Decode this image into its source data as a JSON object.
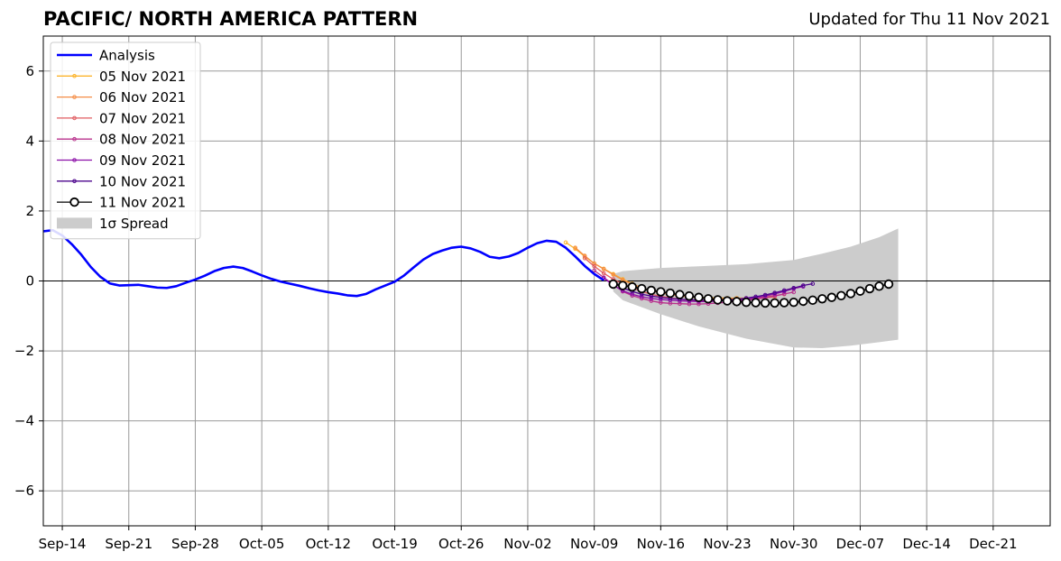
{
  "title_left": "PACIFIC/ NORTH AMERICA PATTERN",
  "title_right": "Updated for Thu 11 Nov 2021",
  "chart_data": {
    "type": "line",
    "title": "PACIFIC/ NORTH AMERICA PATTERN",
    "subtitle": "Updated for Thu 11 Nov 2021",
    "xlabel": "",
    "ylabel": "",
    "ylim": [
      -7,
      7
    ],
    "xlim": [
      "2021-09-12",
      "2021-12-27"
    ],
    "yticks": [
      -6,
      -4,
      -2,
      0,
      2,
      4,
      6
    ],
    "ytick_labels": [
      "−6",
      "−4",
      "−2",
      "0",
      "2",
      "4",
      "6"
    ],
    "xticks": [
      "2021-09-14",
      "2021-09-21",
      "2021-09-28",
      "2021-10-05",
      "2021-10-12",
      "2021-10-19",
      "2021-10-26",
      "2021-11-02",
      "2021-11-09",
      "2021-11-16",
      "2021-11-23",
      "2021-11-30",
      "2021-12-07",
      "2021-12-14",
      "2021-12-21"
    ],
    "xtick_labels": [
      "Sep-14",
      "Sep-21",
      "Sep-28",
      "Oct-05",
      "Oct-12",
      "Oct-19",
      "Oct-26",
      "Nov-02",
      "Nov-09",
      "Nov-16",
      "Nov-23",
      "Nov-30",
      "Dec-07",
      "Dec-14",
      "Dec-21"
    ],
    "grid": true,
    "zero_line": true,
    "legend_position": "top-left",
    "analysis": {
      "name": "Analysis",
      "color": "#0000ff",
      "x": [
        "2021-09-12",
        "2021-09-13",
        "2021-09-14",
        "2021-09-15",
        "2021-09-16",
        "2021-09-17",
        "2021-09-18",
        "2021-09-19",
        "2021-09-20",
        "2021-09-21",
        "2021-09-22",
        "2021-09-23",
        "2021-09-24",
        "2021-09-25",
        "2021-09-26",
        "2021-09-27",
        "2021-09-28",
        "2021-09-29",
        "2021-09-30",
        "2021-10-01",
        "2021-10-02",
        "2021-10-03",
        "2021-10-04",
        "2021-10-05",
        "2021-10-06",
        "2021-10-07",
        "2021-10-08",
        "2021-10-09",
        "2021-10-10",
        "2021-10-11",
        "2021-10-12",
        "2021-10-13",
        "2021-10-14",
        "2021-10-15",
        "2021-10-16",
        "2021-10-17",
        "2021-10-18",
        "2021-10-19",
        "2021-10-20",
        "2021-10-21",
        "2021-10-22",
        "2021-10-23",
        "2021-10-24",
        "2021-10-25",
        "2021-10-26",
        "2021-10-27",
        "2021-10-28",
        "2021-10-29",
        "2021-10-30",
        "2021-10-31",
        "2021-11-01",
        "2021-11-02",
        "2021-11-03",
        "2021-11-04",
        "2021-11-05",
        "2021-11-06",
        "2021-11-07",
        "2021-11-08",
        "2021-11-09",
        "2021-11-10"
      ],
      "values": [
        1.42,
        1.45,
        1.3,
        1.05,
        0.75,
        0.4,
        0.12,
        -0.07,
        -0.13,
        -0.12,
        -0.11,
        -0.15,
        -0.19,
        -0.2,
        -0.15,
        -0.05,
        0.04,
        0.15,
        0.28,
        0.37,
        0.41,
        0.37,
        0.27,
        0.16,
        0.06,
        -0.02,
        -0.08,
        -0.14,
        -0.21,
        -0.27,
        -0.32,
        -0.36,
        -0.41,
        -0.43,
        -0.37,
        -0.24,
        -0.13,
        -0.02,
        0.16,
        0.39,
        0.61,
        0.77,
        0.87,
        0.95,
        0.98,
        0.93,
        0.83,
        0.69,
        0.65,
        0.7,
        0.8,
        0.95,
        1.08,
        1.15,
        1.12,
        0.95,
        0.7,
        0.43,
        0.2,
        0.02
      ]
    },
    "forecasts": [
      {
        "name": "05 Nov 2021",
        "color": "#fcb42c",
        "start": "2021-11-06",
        "values": [
          1.1,
          0.92,
          0.7,
          0.5,
          0.35,
          0.2,
          0.05,
          -0.08,
          -0.2,
          -0.28,
          -0.33,
          -0.38,
          -0.42,
          -0.45,
          -0.47,
          -0.48,
          -0.48,
          -0.49,
          -0.49,
          -0.49,
          -0.48,
          -0.48
        ]
      },
      {
        "name": "06 Nov 2021",
        "color": "#f48c45",
        "start": "2021-11-07",
        "values": [
          0.95,
          0.72,
          0.5,
          0.34,
          0.18,
          0.03,
          -0.1,
          -0.2,
          -0.28,
          -0.34,
          -0.39,
          -0.43,
          -0.46,
          -0.48,
          -0.5,
          -0.5,
          -0.51,
          -0.5,
          -0.5,
          -0.49,
          -0.48,
          -0.46
        ]
      },
      {
        "name": "07 Nov 2021",
        "color": "#e05c60",
        "start": "2021-11-08",
        "values": [
          0.65,
          0.42,
          0.22,
          0.05,
          -0.08,
          -0.2,
          -0.3,
          -0.38,
          -0.44,
          -0.48,
          -0.52,
          -0.55,
          -0.56,
          -0.57,
          -0.57,
          -0.56,
          -0.55,
          -0.53,
          -0.5,
          -0.46,
          -0.42,
          -0.38
        ]
      },
      {
        "name": "08 Nov 2021",
        "color": "#b8308c",
        "start": "2021-11-09",
        "values": [
          0.3,
          0.1,
          -0.1,
          -0.3,
          -0.42,
          -0.5,
          -0.57,
          -0.62,
          -0.64,
          -0.65,
          -0.66,
          -0.66,
          -0.65,
          -0.63,
          -0.61,
          -0.58,
          -0.55,
          -0.52,
          -0.48,
          -0.43,
          -0.37,
          -0.32
        ]
      },
      {
        "name": "09 Nov 2021",
        "color": "#8c10a8",
        "start": "2021-11-10",
        "values": [
          0.08,
          -0.12,
          -0.28,
          -0.38,
          -0.45,
          -0.5,
          -0.53,
          -0.55,
          -0.57,
          -0.58,
          -0.59,
          -0.59,
          -0.58,
          -0.57,
          -0.55,
          -0.52,
          -0.48,
          -0.43,
          -0.37,
          -0.3,
          -0.22,
          -0.16
        ]
      },
      {
        "name": "10 Nov 2021",
        "color": "#4c048c",
        "start": "2021-11-11",
        "values": [
          -0.05,
          -0.2,
          -0.3,
          -0.38,
          -0.43,
          -0.47,
          -0.5,
          -0.52,
          -0.54,
          -0.55,
          -0.55,
          -0.55,
          -0.54,
          -0.52,
          -0.49,
          -0.45,
          -0.4,
          -0.34,
          -0.27,
          -0.2,
          -0.13,
          -0.08
        ]
      },
      {
        "name": "11 Nov 2021",
        "color": "#000000",
        "start": "2021-11-11",
        "marker": "open-circle",
        "values": [
          -0.09,
          -0.13,
          -0.17,
          -0.22,
          -0.27,
          -0.31,
          -0.35,
          -0.39,
          -0.43,
          -0.47,
          -0.51,
          -0.54,
          -0.57,
          -0.59,
          -0.61,
          -0.62,
          -0.63,
          -0.63,
          -0.62,
          -0.61,
          -0.58,
          -0.55,
          -0.51,
          -0.47,
          -0.42,
          -0.36,
          -0.29,
          -0.22,
          -0.15,
          -0.09
        ]
      }
    ],
    "spread": {
      "name": "1σ Spread",
      "color": "#cccccc",
      "x": [
        "2021-11-11",
        "2021-11-12",
        "2021-11-16",
        "2021-11-20",
        "2021-11-25",
        "2021-11-30",
        "2021-12-03",
        "2021-12-06",
        "2021-12-09",
        "2021-12-11"
      ],
      "upper": [
        0.2,
        0.28,
        0.37,
        0.42,
        0.48,
        0.6,
        0.78,
        0.98,
        1.25,
        1.5
      ],
      "lower": [
        -0.3,
        -0.55,
        -0.95,
        -1.3,
        -1.65,
        -1.9,
        -1.92,
        -1.85,
        -1.75,
        -1.68
      ]
    }
  }
}
